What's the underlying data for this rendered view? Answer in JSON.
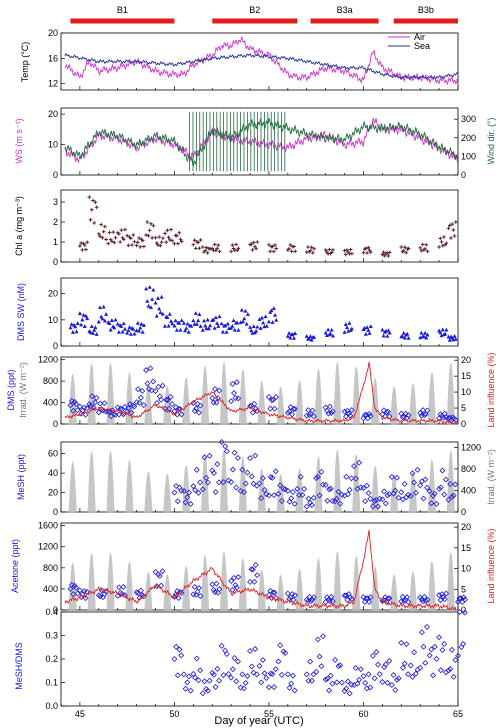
{
  "colors": {
    "magenta": "#cc33cc",
    "navy": "#1f2e9e",
    "green": "#1f6b3a",
    "brown": "#5a2328",
    "blue": "#1a1adb",
    "gray": "#bdbdbd",
    "red": "#e02020"
  },
  "periods": [
    {
      "label": "B1",
      "start": 44.5,
      "end": 50
    },
    {
      "label": "B2",
      "start": 52,
      "end": 56.5
    },
    {
      "label": "B3a",
      "start": 57.2,
      "end": 60.8
    },
    {
      "label": "B3b",
      "start": 61.6,
      "end": 65
    }
  ],
  "chart_data": [
    {
      "type": "line",
      "ylabel": "Temp (°C)",
      "xlim": [
        44,
        65
      ],
      "ylim": [
        11,
        20
      ],
      "yticks": [
        12,
        16,
        20
      ],
      "legend": "top-right",
      "series": [
        {
          "name": "Air",
          "x": [
            44.2,
            45,
            45.5,
            46,
            47,
            48,
            49,
            49.8,
            50.5,
            51,
            52,
            52.5,
            53,
            53.5,
            54,
            55,
            55.5,
            56,
            56.5,
            57,
            58,
            59,
            60,
            60.5,
            61,
            62,
            63,
            64,
            65
          ],
          "values": [
            15,
            13,
            15.5,
            14,
            14.5,
            15.5,
            14,
            13.5,
            13.5,
            15,
            16.5,
            18,
            18,
            19,
            17.5,
            16.5,
            15,
            13.5,
            13,
            13,
            14.5,
            14,
            12.5,
            17,
            14.5,
            13,
            13,
            12.5,
            12.5
          ]
        },
        {
          "name": "Sea",
          "x": [
            44.2,
            46,
            48,
            50,
            52,
            54,
            56,
            57,
            58,
            59,
            60,
            61,
            62,
            63,
            64,
            65
          ],
          "values": [
            16.5,
            15.5,
            15.5,
            15,
            16,
            16.5,
            16,
            15.5,
            15,
            14.5,
            14.5,
            13.5,
            13,
            13,
            13,
            13.5
          ]
        }
      ]
    },
    {
      "type": "line",
      "ylabel": "WS (m s⁻¹)",
      "y2label": "Wind dir. (°)",
      "xlim": [
        44,
        65
      ],
      "ylim": [
        0,
        22
      ],
      "yticks": [
        0,
        10,
        20
      ],
      "y2lim": [
        0,
        360
      ],
      "y2ticks": [
        0,
        100,
        200,
        300
      ],
      "series": [
        {
          "name": "WS",
          "x": [
            44.2,
            45,
            46,
            47,
            48,
            49,
            50,
            51,
            52,
            53,
            54,
            55,
            56,
            57,
            58,
            59,
            60,
            60.5,
            61,
            62,
            63,
            64,
            65
          ],
          "values": [
            8,
            5,
            13,
            12,
            9,
            12,
            10,
            6,
            14,
            12,
            11,
            10,
            9,
            12,
            13,
            10,
            11,
            18,
            15,
            15,
            12,
            9,
            5
          ]
        },
        {
          "name": "Wind dir.",
          "axis": "y2",
          "x": [
            44.2,
            45,
            46,
            47,
            48,
            49,
            50,
            51,
            52,
            53,
            54,
            55,
            56,
            57,
            58,
            59,
            60,
            61,
            62,
            63,
            64,
            65
          ],
          "values": [
            150,
            100,
            230,
            210,
            160,
            210,
            180,
            60,
            240,
            200,
            270,
            280,
            250,
            220,
            200,
            190,
            260,
            250,
            260,
            220,
            150,
            100
          ]
        }
      ]
    },
    {
      "type": "scatter",
      "ylabel": "Chl a (mg m⁻³)",
      "xlim": [
        44,
        65
      ],
      "ylim": [
        0,
        3.6
      ],
      "yticks": [
        0,
        1,
        2,
        3
      ],
      "series": [
        {
          "name": "Chl a",
          "x": [
            45,
            45.5,
            46,
            46.5,
            47,
            47.5,
            48,
            48.5,
            49,
            49.5,
            50,
            51,
            51.5,
            52,
            53,
            54,
            55,
            56,
            57,
            58,
            59,
            60,
            61,
            62,
            63,
            64,
            64.5
          ],
          "values": [
            0.8,
            2.6,
            1.5,
            1.2,
            1.3,
            1.1,
            1.0,
            1.6,
            1.0,
            1.3,
            1.2,
            0.9,
            0.6,
            0.7,
            0.7,
            0.8,
            0.7,
            0.7,
            0.6,
            0.5,
            0.5,
            0.6,
            0.4,
            0.6,
            0.7,
            1.0,
            1.6
          ]
        }
      ]
    },
    {
      "type": "scatter",
      "ylabel": "DMS SW (nM)",
      "xlim": [
        44,
        65
      ],
      "ylim": [
        0,
        26
      ],
      "yticks": [
        0,
        10,
        20
      ],
      "series": [
        {
          "name": "DMS SW",
          "x": [
            44.5,
            45,
            45.5,
            46,
            46.5,
            47,
            47.5,
            48,
            48.5,
            49,
            49.5,
            50,
            50.5,
            51,
            51.5,
            52,
            52.5,
            53,
            53.5,
            54,
            54.5,
            55,
            56,
            57,
            58,
            59,
            60,
            61,
            62,
            63,
            64,
            64.5
          ],
          "values": [
            7,
            10,
            6,
            12,
            8,
            7,
            6,
            7,
            18,
            15,
            10,
            8,
            7,
            10,
            8,
            9,
            7,
            8,
            11,
            6,
            9,
            12,
            4,
            3,
            5,
            7,
            6,
            5,
            4,
            4,
            5,
            3
          ]
        }
      ]
    },
    {
      "type": "line",
      "ylabel": "DMS (ppt)",
      "y2label": "Land influence (%)",
      "y3label": "Irrad. (W m⁻²)",
      "xlim": [
        44,
        65
      ],
      "ylim": [
        0,
        1250
      ],
      "yticks": [
        0,
        400,
        800,
        1200
      ],
      "y2lim": [
        0,
        21
      ],
      "y2ticks": [
        0,
        5,
        10,
        15,
        20
      ],
      "series": [
        {
          "name": "DMS",
          "type": "scatter",
          "x": [
            44.5,
            45,
            45.5,
            46,
            46.5,
            47,
            47.5,
            48,
            48.5,
            49,
            49.5,
            50,
            51,
            52,
            53,
            54,
            55,
            56,
            57,
            58,
            59,
            60,
            61,
            62,
            63,
            64,
            64.5
          ],
          "values": [
            350,
            250,
            400,
            300,
            200,
            250,
            300,
            500,
            800,
            550,
            400,
            250,
            300,
            500,
            600,
            300,
            400,
            250,
            200,
            250,
            200,
            150,
            200,
            150,
            200,
            150,
            100
          ]
        },
        {
          "name": "Land influence",
          "axis": "y2",
          "x": [
            44.2,
            45,
            46,
            47,
            48,
            49,
            50,
            51,
            52,
            53,
            54,
            55,
            56,
            57,
            58,
            59,
            59.5,
            60,
            60.3,
            60.6,
            61,
            62,
            63,
            64,
            65
          ],
          "values": [
            2,
            3,
            5,
            4,
            2,
            6,
            3,
            7,
            10,
            4,
            5,
            3,
            2,
            1,
            1,
            1,
            2,
            12,
            19,
            5,
            2,
            1,
            1,
            1,
            0
          ]
        }
      ]
    },
    {
      "type": "scatter",
      "ylabel": "MeSH (ppt)",
      "y2label": "Irrad. (W m⁻²)",
      "xlim": [
        44,
        65
      ],
      "ylim": [
        0,
        72
      ],
      "yticks": [
        0,
        20,
        40,
        60
      ],
      "y2lim": [
        0,
        1300
      ],
      "y2ticks": [
        0,
        400,
        800,
        1200
      ],
      "series": [
        {
          "name": "MeSH",
          "x": [
            50,
            50.5,
            51,
            51.5,
            52,
            52.5,
            53,
            53.5,
            54,
            54.5,
            55,
            55.5,
            56,
            56.5,
            57,
            57.5,
            58,
            58.5,
            59,
            59.5,
            60,
            60.5,
            61,
            61.5,
            62,
            62.5,
            63,
            63.5,
            64,
            64.5
          ],
          "values": [
            20,
            15,
            30,
            40,
            35,
            55,
            45,
            30,
            40,
            25,
            30,
            20,
            15,
            25,
            10,
            30,
            20,
            15,
            25,
            35,
            20,
            10,
            15,
            25,
            20,
            30,
            25,
            15,
            30,
            20
          ]
        }
      ]
    },
    {
      "type": "line",
      "ylabel": "Acetone (ppt)",
      "y2label": "Land influence (%)",
      "xlim": [
        44,
        65
      ],
      "ylim": [
        0,
        1650
      ],
      "yticks": [
        0,
        400,
        800,
        1200,
        1600
      ],
      "y2lim": [
        0,
        21
      ],
      "y2ticks": [
        0,
        5,
        10,
        15,
        20
      ],
      "series": [
        {
          "name": "Acetone",
          "type": "scatter",
          "x": [
            44.5,
            45,
            46,
            47,
            48,
            49,
            50,
            51,
            52,
            53,
            54,
            55,
            56,
            57,
            58,
            59,
            60,
            61,
            62,
            63,
            64,
            65
          ],
          "values": [
            400,
            300,
            300,
            350,
            300,
            600,
            300,
            350,
            400,
            500,
            700,
            300,
            250,
            200,
            200,
            250,
            200,
            200,
            200,
            200,
            250,
            200
          ]
        },
        {
          "name": "Land influence",
          "axis": "y2",
          "x": [
            44.2,
            45,
            46,
            47,
            48,
            49,
            50,
            51,
            52,
            53,
            54,
            55,
            56,
            57,
            58,
            59,
            59.5,
            60,
            60.3,
            60.6,
            61,
            62,
            63,
            64,
            65
          ],
          "values": [
            2,
            3,
            5,
            4,
            2,
            6,
            3,
            7,
            10,
            4,
            5,
            3,
            2,
            1,
            1,
            1,
            2,
            12,
            19,
            5,
            2,
            1,
            1,
            1,
            0
          ]
        }
      ]
    },
    {
      "type": "scatter",
      "ylabel": "MeSH/DMS",
      "xlabel": "Day of year (UTC)",
      "xlim": [
        44,
        65
      ],
      "xticks": [
        45,
        50,
        55,
        60,
        65
      ],
      "ylim": [
        0,
        0.4
      ],
      "yticks": [
        0,
        0.1,
        0.2,
        0.3,
        0.4
      ],
      "yticklabels": [
        "0.0",
        "0.1",
        "0.2",
        "0.3",
        "0.4"
      ],
      "series": [
        {
          "name": "MeSH/DMS",
          "x": [
            50,
            50.5,
            51,
            51.5,
            52,
            52.5,
            53,
            53.5,
            54,
            54.5,
            55,
            55.5,
            56,
            57,
            57.5,
            58,
            58.5,
            59,
            59.5,
            60,
            60.5,
            61,
            61.5,
            62,
            62.5,
            63,
            63.5,
            64,
            64.5,
            65
          ],
          "values": [
            0.2,
            0.1,
            0.15,
            0.08,
            0.12,
            0.2,
            0.16,
            0.1,
            0.18,
            0.15,
            0.12,
            0.2,
            0.1,
            0.14,
            0.22,
            0.1,
            0.15,
            0.08,
            0.12,
            0.1,
            0.18,
            0.15,
            0.1,
            0.2,
            0.17,
            0.25,
            0.2,
            0.22,
            0.18,
            0.3
          ]
        }
      ]
    }
  ]
}
